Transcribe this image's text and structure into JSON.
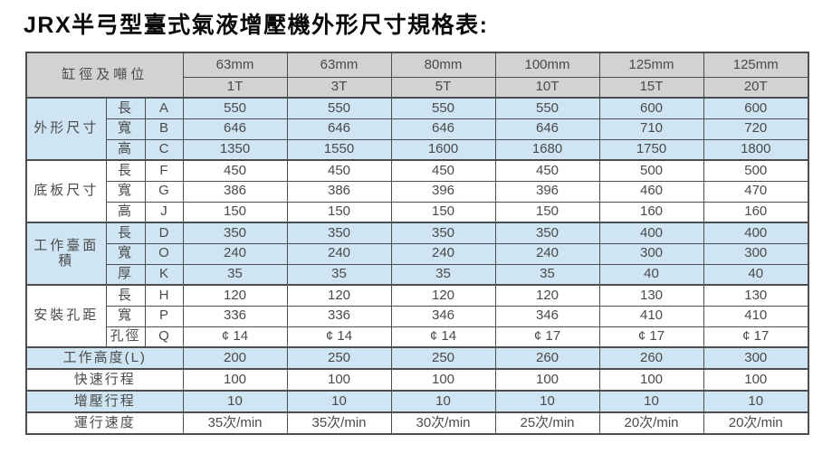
{
  "page": {
    "title": "JRX半弓型臺式氣液增壓機外形尺寸規格表:"
  },
  "colors": {
    "header_bg": "#d2d2d2",
    "blue_row_bg": "#cfe5f4",
    "white_row_bg": "#ffffff",
    "border": "#4d4d4d",
    "text": "#4a4a4a",
    "title_color": "#0a0a0a"
  },
  "table": {
    "corner_label": "缸徑及噸位",
    "columns": [
      {
        "bore": "63mm",
        "tonnage": "1T"
      },
      {
        "bore": "63mm",
        "tonnage": "3T"
      },
      {
        "bore": "80mm",
        "tonnage": "5T"
      },
      {
        "bore": "100mm",
        "tonnage": "10T"
      },
      {
        "bore": "125mm",
        "tonnage": "15T"
      },
      {
        "bore": "125mm",
        "tonnage": "20T"
      }
    ],
    "groups": [
      {
        "label": "外形尺寸",
        "shade": "blue",
        "rows": [
          {
            "dim": "長",
            "letter": "A",
            "values": [
              "550",
              "550",
              "550",
              "550",
              "600",
              "600"
            ]
          },
          {
            "dim": "寬",
            "letter": "B",
            "values": [
              "646",
              "646",
              "646",
              "646",
              "710",
              "720"
            ]
          },
          {
            "dim": "高",
            "letter": "C",
            "values": [
              "1350",
              "1550",
              "1600",
              "1680",
              "1750",
              "1800"
            ]
          }
        ]
      },
      {
        "label": "底板尺寸",
        "shade": "white",
        "rows": [
          {
            "dim": "長",
            "letter": "F",
            "values": [
              "450",
              "450",
              "450",
              "450",
              "500",
              "500"
            ]
          },
          {
            "dim": "寬",
            "letter": "G",
            "values": [
              "386",
              "386",
              "396",
              "396",
              "460",
              "470"
            ]
          },
          {
            "dim": "高",
            "letter": "J",
            "values": [
              "150",
              "150",
              "150",
              "150",
              "160",
              "160"
            ]
          }
        ]
      },
      {
        "label": "工作臺面積",
        "shade": "blue",
        "rows": [
          {
            "dim": "長",
            "letter": "D",
            "values": [
              "350",
              "350",
              "350",
              "350",
              "400",
              "400"
            ]
          },
          {
            "dim": "寬",
            "letter": "O",
            "values": [
              "240",
              "240",
              "240",
              "240",
              "300",
              "300"
            ]
          },
          {
            "dim": "厚",
            "letter": "K",
            "values": [
              "35",
              "35",
              "35",
              "35",
              "40",
              "40"
            ]
          }
        ]
      },
      {
        "label": "安裝孔距",
        "shade": "white",
        "rows": [
          {
            "dim": "長",
            "letter": "H",
            "values": [
              "120",
              "120",
              "120",
              "120",
              "130",
              "130"
            ]
          },
          {
            "dim": "寬",
            "letter": "P",
            "values": [
              "336",
              "336",
              "346",
              "346",
              "410",
              "410"
            ]
          },
          {
            "dim": "孔徑",
            "letter": "Q",
            "values": [
              "¢ 14",
              "¢ 14",
              "¢ 14",
              "¢ 17",
              "¢ 17",
              "¢ 17"
            ]
          }
        ]
      }
    ],
    "summary_rows": [
      {
        "label": "工作高度(L)",
        "shade": "blue",
        "values": [
          "200",
          "250",
          "250",
          "260",
          "260",
          "300"
        ]
      },
      {
        "label": "快速行程",
        "shade": "white",
        "values": [
          "100",
          "100",
          "100",
          "100",
          "100",
          "100"
        ]
      },
      {
        "label": "增壓行程",
        "shade": "blue",
        "values": [
          "10",
          "10",
          "10",
          "10",
          "10",
          "10"
        ]
      },
      {
        "label": "運行速度",
        "shade": "white",
        "values": [
          "35次/min",
          "35次/min",
          "30次/min",
          "25次/min",
          "20次/min",
          "20次/min"
        ]
      }
    ]
  }
}
